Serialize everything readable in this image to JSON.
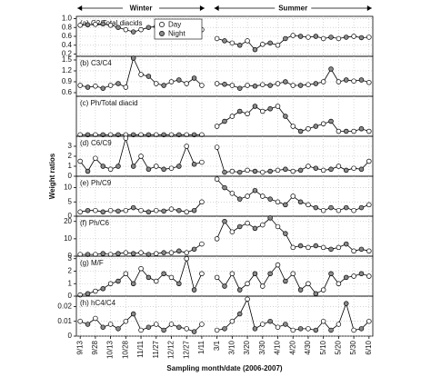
{
  "chart_data": {
    "type": "line",
    "periods": [
      "Winter",
      "Summer"
    ],
    "xlabel": "Sampling month/date (2006-2007)",
    "ylabel": "Weight ratios",
    "grid": true,
    "legend": [
      {
        "name": "Day",
        "color": "#ffffff"
      },
      {
        "name": "Night",
        "color": "#8a8a8a"
      }
    ],
    "categories": [
      "9/13",
      null,
      "9/28",
      null,
      "10/13",
      null,
      "10/28",
      null,
      "11/11",
      null,
      "11/27",
      null,
      "12/12",
      null,
      "12/27",
      null,
      "1/11",
      null,
      "3/1",
      null,
      "3/10",
      null,
      "3/20",
      null,
      "3/30",
      null,
      "4/10",
      null,
      "4/20",
      null,
      "4/30",
      null,
      "5/10",
      null,
      "5/20",
      null,
      "5/30",
      null,
      "6/10"
    ],
    "panels": [
      {
        "label": "(a) C2/Total diacids",
        "ylim": [
          0.15,
          1.05
        ],
        "yticks": [
          {
            "value": 1,
            "label": "1.0"
          },
          0.8,
          0.6,
          0.4,
          0.2
        ],
        "values": [
          0.85,
          0.86,
          0.87,
          0.88,
          0.85,
          0.8,
          0.75,
          0.7,
          0.75,
          0.8,
          0.82,
          0.83,
          0.82,
          0.8,
          0.7,
          0.78,
          0.75,
          null,
          0.55,
          0.5,
          0.45,
          0.4,
          0.5,
          0.3,
          0.42,
          0.45,
          0.4,
          0.55,
          0.62,
          0.6,
          0.58,
          0.6,
          0.55,
          0.58,
          0.55,
          0.58,
          0.6,
          0.57,
          0.58
        ]
      },
      {
        "label": "(b) C3/C4",
        "ylim": [
          0.5,
          1.6
        ],
        "yticks": [
          0.6,
          0.9,
          1.2,
          1.5
        ],
        "values": [
          0.8,
          0.75,
          0.78,
          0.72,
          0.8,
          0.85,
          0.75,
          1.55,
          1.1,
          1.05,
          0.85,
          0.8,
          0.9,
          0.95,
          0.85,
          1.0,
          0.8,
          null,
          0.85,
          0.83,
          0.8,
          0.72,
          0.8,
          0.78,
          0.82,
          0.8,
          0.85,
          0.9,
          0.8,
          0.8,
          0.82,
          0.85,
          0.9,
          1.25,
          0.9,
          0.95,
          0.92,
          0.95,
          0.88
        ]
      },
      {
        "label": "(c) Ph/Total diacid",
        "ylim": [
          0,
          0.08
        ],
        "values": [
          0.003,
          0.003,
          0.003,
          0.003,
          0.003,
          0.003,
          0.003,
          0.003,
          0.003,
          0.003,
          0.003,
          0.003,
          0.003,
          0.003,
          0.003,
          0.003,
          0.003,
          null,
          0.02,
          0.03,
          0.04,
          0.05,
          0.045,
          0.06,
          0.05,
          0.055,
          0.06,
          0.04,
          0.02,
          0.01,
          0.015,
          0.02,
          0.025,
          0.03,
          0.01,
          0.01,
          0.01,
          0.015,
          0.01
        ]
      },
      {
        "label": "(d) C6/C9",
        "ylim": [
          0,
          4
        ],
        "yticks": [
          0,
          1,
          2,
          3
        ],
        "values": [
          1.5,
          0.5,
          1.8,
          1.0,
          0.7,
          1.0,
          3.8,
          1.0,
          2.0,
          0.7,
          1.0,
          0.7,
          0.8,
          1.0,
          3.0,
          1.2,
          1.4,
          null,
          2.9,
          0.4,
          0.5,
          0.4,
          0.6,
          0.5,
          0.4,
          0.5,
          0.6,
          0.7,
          0.5,
          0.6,
          1.0,
          0.8,
          0.6,
          0.7,
          1.0,
          0.6,
          0.8,
          0.7,
          1.5
        ]
      },
      {
        "label": "(e) Ph/C9",
        "ylim": [
          0,
          14
        ],
        "yticks": [
          0,
          5,
          10
        ],
        "values": [
          1.5,
          2,
          2,
          1.5,
          2,
          1.8,
          2,
          3,
          2,
          1.5,
          2,
          1.8,
          2.5,
          2,
          1.5,
          2,
          5,
          null,
          13,
          10,
          8,
          6,
          7,
          9,
          7,
          6,
          5,
          4,
          7,
          5,
          4,
          3,
          2,
          3,
          2,
          3,
          2,
          3,
          4
        ]
      },
      {
        "label": "(f) Ph/C6",
        "ylim": [
          0,
          23
        ],
        "yticks": [
          0,
          10,
          20
        ],
        "values": [
          1,
          1,
          1,
          1.5,
          1,
          1.5,
          2,
          1.5,
          2,
          1,
          1.5,
          2,
          2,
          3,
          2,
          4,
          7,
          null,
          10,
          20,
          14,
          17,
          19,
          16,
          18,
          22,
          17,
          13,
          5,
          6,
          5,
          6,
          5,
          4,
          5,
          7,
          3,
          4,
          3
        ]
      },
      {
        "label": "(g) M/F",
        "ylim": [
          0,
          3.2
        ],
        "yticks": [
          0,
          1,
          2,
          3
        ],
        "values": [
          0.1,
          0.2,
          0.4,
          0.6,
          1.0,
          1.2,
          1.8,
          1.0,
          2.2,
          1.5,
          1.2,
          1.8,
          1.5,
          1.0,
          3.0,
          0.5,
          1.8,
          null,
          1.5,
          0.8,
          1.8,
          0.5,
          1.0,
          1.8,
          0.8,
          1.8,
          2.5,
          1.2,
          1.8,
          0.5,
          1.0,
          0.2,
          0.5,
          1.8,
          1.0,
          1.5,
          1.6,
          1.8,
          1.6
        ]
      },
      {
        "label": "(h) hC4/C4",
        "ylim": [
          0,
          0.027
        ],
        "yticks": [
          0,
          0.01,
          0.02
        ],
        "values": [
          0.01,
          0.008,
          0.012,
          0.006,
          0.008,
          0.005,
          0.01,
          0.015,
          0.004,
          0.006,
          0.008,
          0.004,
          0.008,
          0.006,
          0.005,
          0.003,
          0.008,
          null,
          0.004,
          0.005,
          0.01,
          0.015,
          0.025,
          0.005,
          0.008,
          0.01,
          0.006,
          0.008,
          0.004,
          0.005,
          0.005,
          0.004,
          0.01,
          0.004,
          0.008,
          0.022,
          0.004,
          0.005,
          0.01
        ]
      }
    ]
  }
}
